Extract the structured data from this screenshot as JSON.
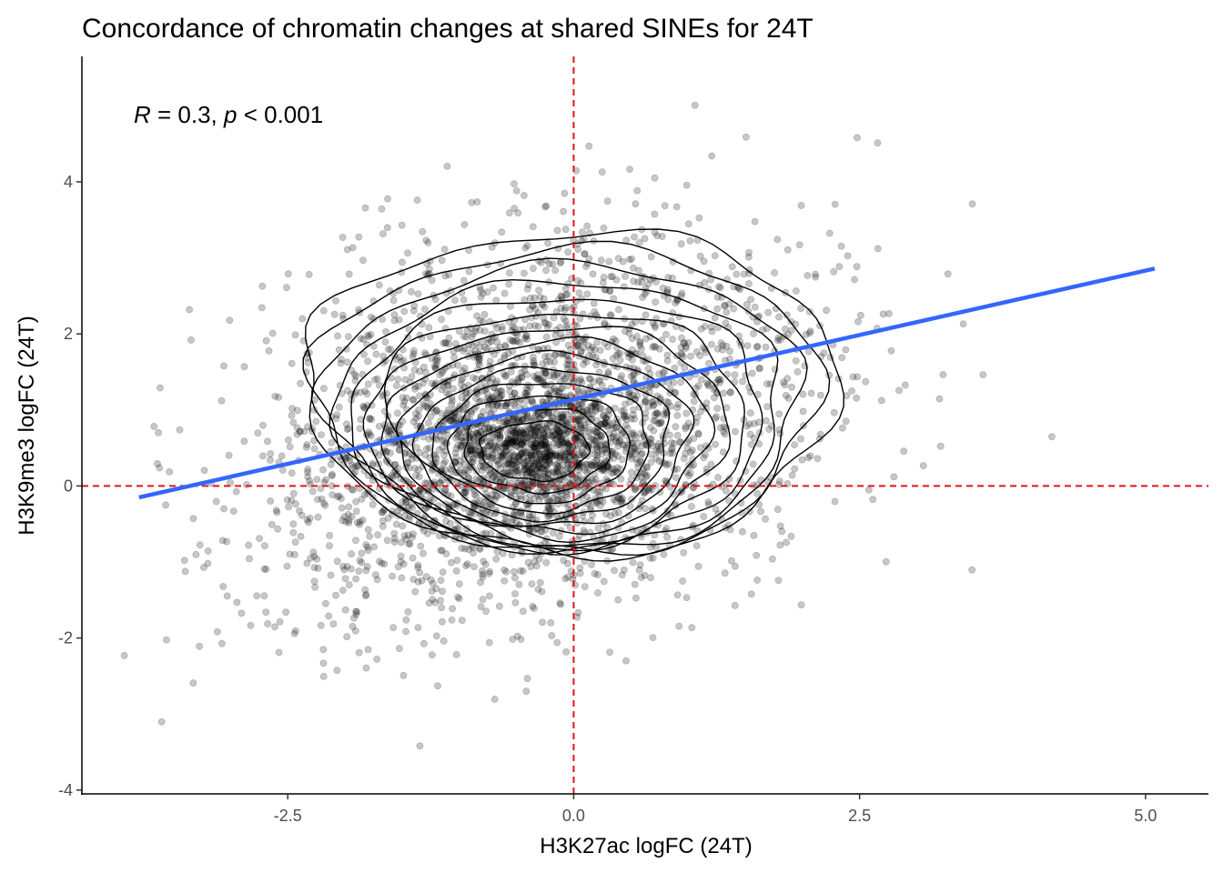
{
  "chart_data": {
    "type": "scatter",
    "title": "Concordance of chromatin changes at shared SINEs for 24T",
    "xlabel": "H3K27ac logFC (24T)",
    "ylabel": "H3K9me3 logFC (24T)",
    "xlim": [
      -4.3,
      5.55
    ],
    "ylim": [
      -4.05,
      5.65
    ],
    "x_ticks": [
      -2.5,
      0.0,
      2.5,
      5.0
    ],
    "x_tick_labels": [
      "-2.5",
      "0.0",
      "2.5",
      "5.0"
    ],
    "y_ticks": [
      -4,
      -2,
      0,
      2,
      4
    ],
    "y_tick_labels": [
      "-4",
      "-2",
      "0",
      "2",
      "4"
    ],
    "annotation": {
      "R_symbol": "R",
      "R_text": " = 0.3, ",
      "p_symbol": "p",
      "p_text": " < 0.001"
    },
    "reference_lines": {
      "x": 0,
      "y": 0,
      "color": "#e3131b",
      "style": "dashed"
    },
    "regression_line": {
      "x": [
        -3.8,
        5.08
      ],
      "y": [
        -0.15,
        2.86
      ],
      "color": "#3366ff"
    },
    "density_peak": {
      "x": -0.35,
      "y": 0.45
    },
    "point_cloud": {
      "n_points": 3600,
      "center": {
        "x": -0.3,
        "y": 0.85
      },
      "sd": {
        "x": 1.2,
        "y": 1.25
      },
      "correlation": 0.3,
      "point_color": "#000000",
      "point_alpha": 0.22
    },
    "contour_levels": 14,
    "grid": false,
    "legend": "none"
  }
}
